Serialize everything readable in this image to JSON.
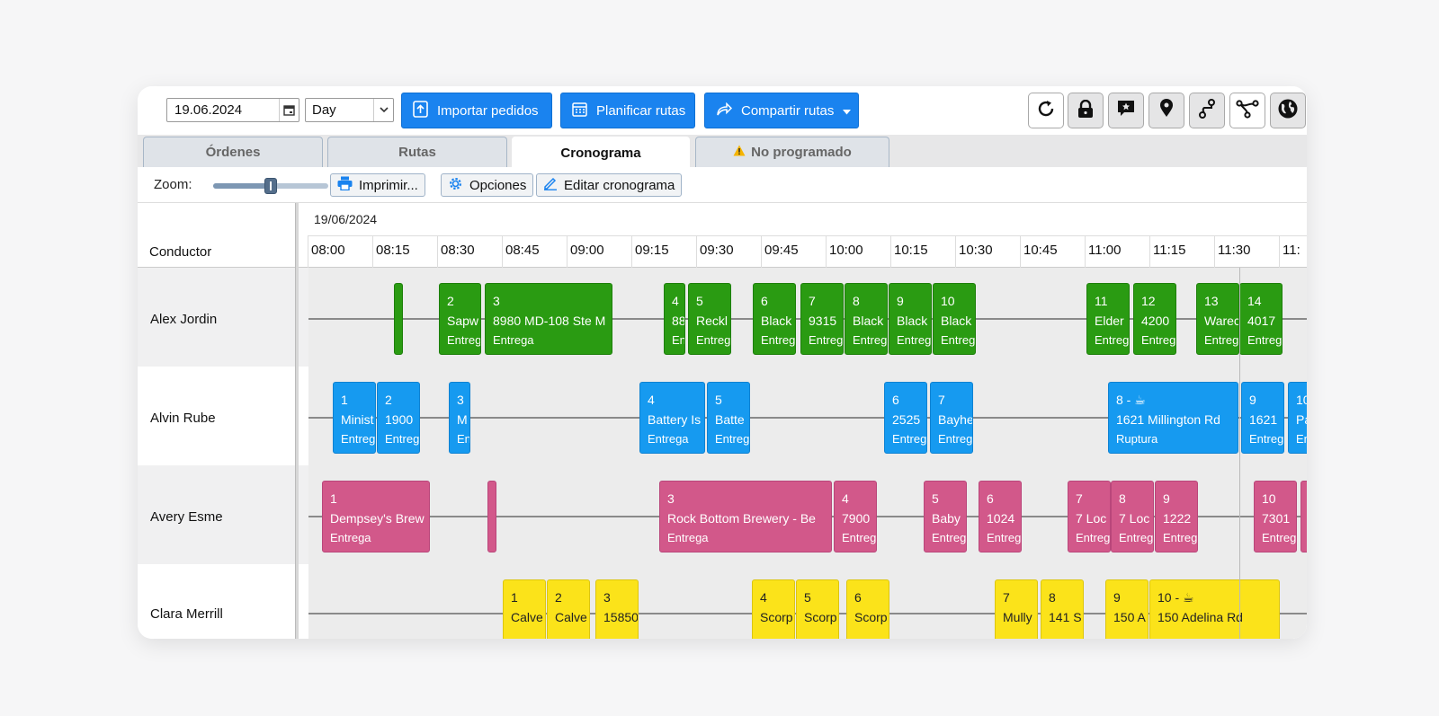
{
  "toolbar": {
    "date_value": "19.06.2024",
    "view_value": "Day",
    "import_label": "Importar pedidos",
    "plan_label": "Planificar rutas",
    "share_label": "Compartir rutas"
  },
  "tabs": [
    {
      "label": "Órdenes"
    },
    {
      "label": "Rutas"
    },
    {
      "label": "Cronograma"
    },
    {
      "label": "No programado"
    }
  ],
  "subbar": {
    "zoom_label": "Zoom:",
    "zoom_level": 0.5,
    "print_label": "Imprimir...",
    "options_label": "Opciones",
    "edit_label": "Editar cronograma"
  },
  "grid": {
    "conductor_label": "Conductor",
    "date": "19/06/2024",
    "times": [
      "08:00",
      "08:15",
      "08:30",
      "08:45",
      "09:00",
      "09:15",
      "09:30",
      "09:45",
      "10:00",
      "10:15",
      "10:30",
      "10:45",
      "11:00",
      "11:15",
      "11:30",
      "11:"
    ]
  },
  "colors": {
    "green": "#2a9b12",
    "blue": "#169af0",
    "pink": "#d2588a",
    "yellow": "#fbe31a",
    "primary": "#1a83ef"
  },
  "drivers": [
    {
      "name": "Alex Jordin",
      "color": "green",
      "stops": [
        {
          "num": "",
          "addr": "",
          "type": ""
        },
        {
          "num": "2",
          "addr": "Sapw",
          "type": "Entrega"
        },
        {
          "num": "3",
          "addr": "8980 MD-108 Ste M",
          "type": "Entrega"
        },
        {
          "num": "4",
          "addr": "88",
          "type": "En"
        },
        {
          "num": "5",
          "addr": "Reckl",
          "type": "Entrega"
        },
        {
          "num": "6",
          "addr": "Black",
          "type": "Entrega"
        },
        {
          "num": "7",
          "addr": "9315",
          "type": "Entrega"
        },
        {
          "num": "8",
          "addr": "Black",
          "type": "Entrega"
        },
        {
          "num": "9",
          "addr": "Black",
          "type": "Entrega"
        },
        {
          "num": "10",
          "addr": "Black",
          "type": "Entrega"
        },
        {
          "num": "11",
          "addr": "Elder",
          "type": "Entrega"
        },
        {
          "num": "12",
          "addr": "4200",
          "type": "Entrega"
        },
        {
          "num": "13",
          "addr": "Warec",
          "type": "Entrega"
        },
        {
          "num": "14",
          "addr": "4017",
          "type": "Entrega"
        }
      ]
    },
    {
      "name": "Alvin Rube",
      "color": "blue",
      "stops": [
        {
          "num": "1",
          "addr": "Minist",
          "type": "Entrega"
        },
        {
          "num": "2",
          "addr": "1900",
          "type": "Entrega"
        },
        {
          "num": "3",
          "addr": "M",
          "type": "Ent"
        },
        {
          "num": "4",
          "addr": "Battery Is",
          "type": "Entrega"
        },
        {
          "num": "5",
          "addr": "Batte",
          "type": "Entrega"
        },
        {
          "num": "6",
          "addr": "2525",
          "type": "Entrega"
        },
        {
          "num": "7",
          "addr": "Bayhe",
          "type": "Entrega"
        },
        {
          "num": "8 - ☕",
          "addr": "1621 Millington Rd",
          "type": "Ruptura"
        },
        {
          "num": "9",
          "addr": "1621",
          "type": "Entrega"
        },
        {
          "num": "10",
          "addr": "Pa",
          "type": "Ent"
        }
      ]
    },
    {
      "name": "Avery Esme",
      "color": "pink",
      "stops": [
        {
          "num": "1",
          "addr": "Dempsey's Brew",
          "type": "Entrega"
        },
        {
          "num": "",
          "addr": "",
          "type": ""
        },
        {
          "num": "3",
          "addr": "Rock Bottom Brewery - Be",
          "type": "Entrega"
        },
        {
          "num": "4",
          "addr": "7900",
          "type": "Entrega"
        },
        {
          "num": "5",
          "addr": "Baby",
          "type": "Entrega"
        },
        {
          "num": "6",
          "addr": "1024",
          "type": "Entrega"
        },
        {
          "num": "7",
          "addr": "7 Loc",
          "type": "Entrega"
        },
        {
          "num": "8",
          "addr": "7 Loc",
          "type": "Entrega"
        },
        {
          "num": "9",
          "addr": "1222",
          "type": "Entrega"
        },
        {
          "num": "10",
          "addr": "7301",
          "type": "Entrega"
        },
        {
          "num": "",
          "addr": "",
          "type": ""
        }
      ]
    },
    {
      "name": "Clara Merrill",
      "color": "yellow",
      "stops": [
        {
          "num": "1",
          "addr": "Calve",
          "type": ""
        },
        {
          "num": "2",
          "addr": "Calve",
          "type": ""
        },
        {
          "num": "3",
          "addr": "15850",
          "type": ""
        },
        {
          "num": "4",
          "addr": "Scorp",
          "type": ""
        },
        {
          "num": "5",
          "addr": "Scorp",
          "type": ""
        },
        {
          "num": "6",
          "addr": "Scorp",
          "type": ""
        },
        {
          "num": "7",
          "addr": "Mully",
          "type": ""
        },
        {
          "num": "8",
          "addr": "141 S",
          "type": ""
        },
        {
          "num": "9",
          "addr": "150 A",
          "type": ""
        },
        {
          "num": "10 - ☕",
          "addr": "150 Adelina Rd",
          "type": ""
        }
      ]
    }
  ]
}
